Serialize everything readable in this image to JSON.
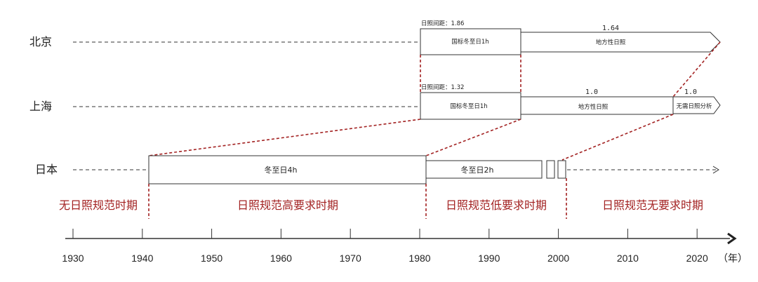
{
  "rows": {
    "beijing": {
      "label": "北京",
      "spacing_label": "日照间距：1.86",
      "box1": "国标冬至日1h",
      "arrow_value": "1.64",
      "arrow_text": "地方性日照"
    },
    "shanghai": {
      "label": "上海",
      "spacing_label": "日照间距：1.32",
      "box1": "国标冬至日1h",
      "box2_value": "1.0",
      "box2_text": "地方性日照",
      "arrow_value": "1.0",
      "arrow_text": "无需日照分析"
    },
    "japan": {
      "label": "日本",
      "box1": "冬至日4h",
      "box2": "冬至日2h"
    }
  },
  "periods": [
    "无日照规范时期",
    "日照规范高要求时期",
    "日照规范低要求时期",
    "日照规范无要求时期"
  ],
  "axis": {
    "ticks": [
      "1930",
      "1940",
      "1950",
      "1960",
      "1970",
      "1980",
      "1990",
      "2000",
      "2010",
      "2020"
    ],
    "unit": "（年）"
  },
  "colors": {
    "accent_red": "#a32222",
    "line": "#333333"
  }
}
